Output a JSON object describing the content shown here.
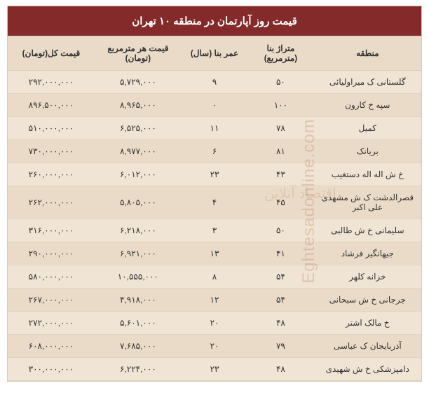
{
  "title": "قیمت روز آپارتمان در منطقه ۱۰ تهران",
  "columns": {
    "region": "منطقه",
    "area": "متراژ بنا (مترمربع)",
    "age": "عمر بنا (سال)",
    "price_per_m": "قیمت هر مترمربع (تومان)",
    "total_price": "قیمت کل(تومان)"
  },
  "rows": [
    {
      "region": "گلستانی ک میراولیائی",
      "area": "۵۰",
      "age": "۹",
      "ppm": "۵,۷۲۹,۰۰۰",
      "total": "۲۹۲,۰۰۰,۰۰۰"
    },
    {
      "region": "سپه خ کارون",
      "area": "۱۰۰",
      "age": "۰",
      "ppm": "۸,۹۶۵,۰۰۰",
      "total": "۸۹۶,۵۰۰,۰۰۰"
    },
    {
      "region": "کمیل",
      "area": "۷۸",
      "age": "۱۱",
      "ppm": "۶,۵۲۵,۰۰۰",
      "total": "۵۱۰,۰۰۰,۰۰۰"
    },
    {
      "region": "بریانک",
      "area": "۸۱",
      "age": "۶",
      "ppm": "۸,۹۷۷,۰۰۰",
      "total": "۷۳۰,۰۰۰,۰۰۰"
    },
    {
      "region": "خ ش اله اله دستغیب",
      "area": "۴۳",
      "age": "۲۳",
      "ppm": "۶,۰۱۲,۰۰۰",
      "total": "۲۶۰,۰۰۰,۰۰۰"
    },
    {
      "region": "قصرالدشت ک ش مشهدی علی اکبر",
      "area": "۴۵",
      "age": "۴",
      "ppm": "۵,۸۰۵,۰۰۰",
      "total": "۲۶۲,۰۰۰,۰۰۰"
    },
    {
      "region": "سلیمانی خ ش طالبی",
      "area": "۵۰",
      "age": "۳",
      "ppm": "۶,۲۱۸,۰۰۰",
      "total": "۳۱۶,۰۰۰,۰۰۰"
    },
    {
      "region": "جیهانگیر فرشاد",
      "area": "۴۱",
      "age": "۱۳",
      "ppm": "۶,۹۲۱,۰۰۰",
      "total": "۲۹۰,۰۰۰,۰۰۰"
    },
    {
      "region": "خزانه کلهر",
      "area": "۵۴",
      "age": "۸",
      "ppm": "۱۰,۵۵۵,۰۰۰",
      "total": "۵۸۰,۰۰۰,۰۰۰"
    },
    {
      "region": "جرجانی خ ش سبحانی",
      "area": "۵۴",
      "age": "۱۲",
      "ppm": "۴,۹۱۸,۰۰۰",
      "total": "۲۶۷,۰۰۰,۰۰۰"
    },
    {
      "region": "خ مالک اشتر",
      "area": "۴۸",
      "age": "۲۰",
      "ppm": "۵,۶۰۱,۰۰۰",
      "total": "۲۷۲,۰۰۰,۰۰۰"
    },
    {
      "region": "آذربایجان ک عباسی",
      "area": "۷۹",
      "age": "۲۰",
      "ppm": "۷,۶۸۵,۰۰۰",
      "total": "۶۰۸,۰۰۰,۰۰۰"
    },
    {
      "region": "دامپزشکی خ ش شهیدی",
      "area": "۴۸",
      "age": "۲۳",
      "ppm": "۶,۲۲۴,۰۰۰",
      "total": "۳۰۰,۰۰۰,۰۰۰"
    }
  ],
  "watermark_en": "Eghtesadonline.com",
  "watermark_fa": "اقتصاد آنلاین",
  "styling": {
    "title_bg": "#842a2a",
    "title_fg": "#ffffff",
    "header_bg": "#eadbc8",
    "row_odd_bg": "#f0e4d4",
    "row_even_bg": "#eadbc8",
    "border_color": "#d8c9b8",
    "text_color": "#333333",
    "title_fontsize": 15,
    "header_fontsize": 12,
    "cell_fontsize": 12,
    "col_widths_pct": {
      "region": 26,
      "area": 16,
      "age": 16,
      "ppm": 21,
      "total": 21
    }
  }
}
